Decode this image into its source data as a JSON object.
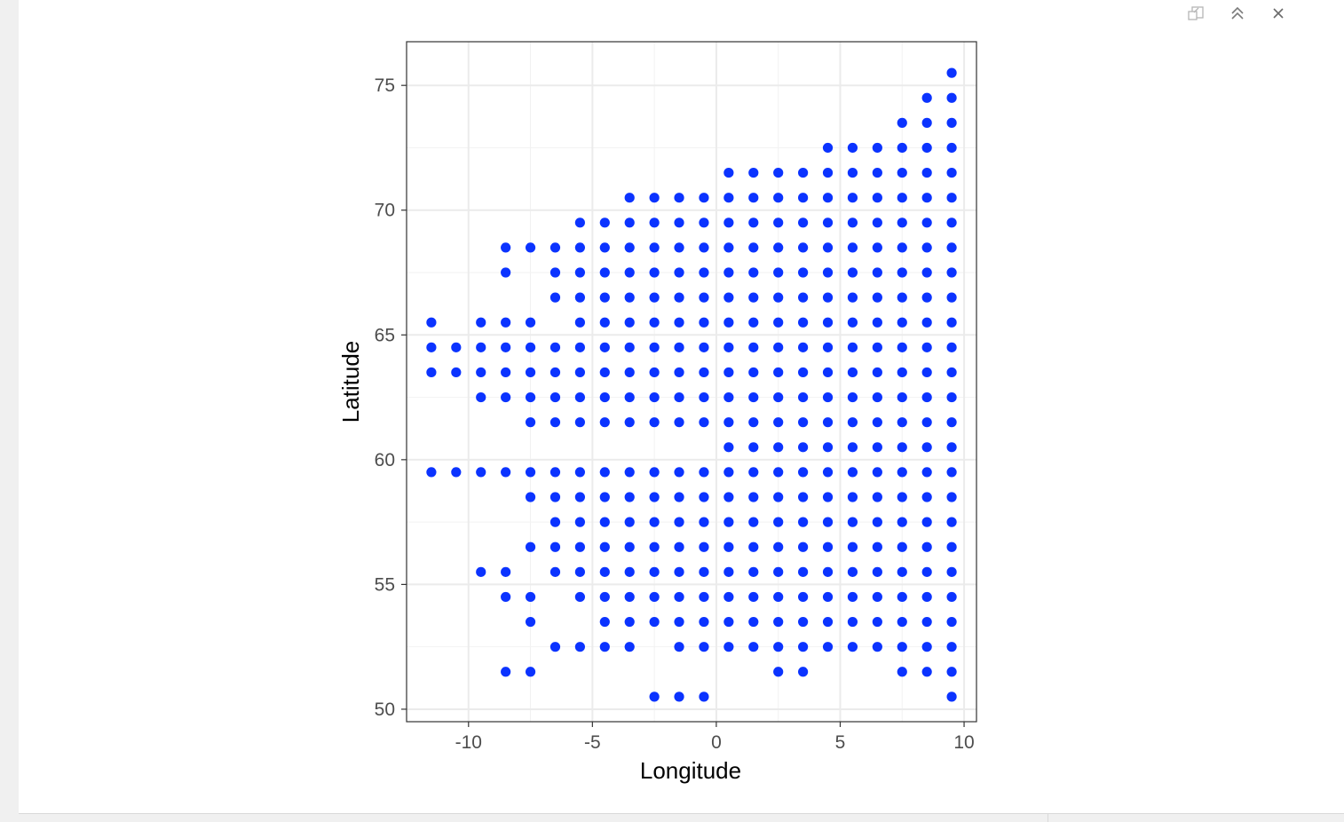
{
  "toolbar": {
    "icons": [
      "popout-icon",
      "collapse-icon",
      "close-icon"
    ]
  },
  "chart_data": {
    "type": "scatter",
    "title": "",
    "xlabel": "Longitude",
    "ylabel": "Latitude",
    "xlim": [
      -12.5,
      10.5
    ],
    "ylim": [
      49.5,
      76.75
    ],
    "x_ticks": [
      "-10",
      "-5",
      "0",
      "5",
      "10"
    ],
    "x_tick_values": [
      -10,
      -5,
      0,
      5,
      10
    ],
    "y_ticks": [
      "50",
      "55",
      "60",
      "65",
      "70",
      "75"
    ],
    "y_tick_values": [
      50,
      55,
      60,
      65,
      70,
      75
    ],
    "grid": true,
    "point_color": "#0b33ff",
    "rows": [
      {
        "lat": 75.5,
        "lons": [
          9.5
        ]
      },
      {
        "lat": 74.5,
        "lons": [
          8.5,
          9.5
        ]
      },
      {
        "lat": 73.5,
        "lons": [
          7.5,
          8.5,
          9.5
        ]
      },
      {
        "lat": 72.5,
        "lons": [
          4.5,
          5.5,
          6.5,
          7.5,
          8.5,
          9.5
        ]
      },
      {
        "lat": 71.5,
        "lons": [
          0.5,
          1.5,
          2.5,
          3.5,
          4.5,
          5.5,
          6.5,
          7.5,
          8.5,
          9.5
        ]
      },
      {
        "lat": 70.5,
        "lons": [
          -3.5,
          -2.5,
          -1.5,
          -0.5,
          0.5,
          1.5,
          2.5,
          3.5,
          4.5,
          5.5,
          6.5,
          7.5,
          8.5,
          9.5
        ]
      },
      {
        "lat": 69.5,
        "lons": [
          -5.5,
          -4.5,
          -3.5,
          -2.5,
          -1.5,
          -0.5,
          0.5,
          1.5,
          2.5,
          3.5,
          4.5,
          5.5,
          6.5,
          7.5,
          8.5,
          9.5
        ]
      },
      {
        "lat": 68.5,
        "lons": [
          -8.5,
          -7.5,
          -6.5,
          -5.5,
          -4.5,
          -3.5,
          -2.5,
          -1.5,
          -0.5,
          0.5,
          1.5,
          2.5,
          3.5,
          4.5,
          5.5,
          6.5,
          7.5,
          8.5,
          9.5
        ]
      },
      {
        "lat": 67.5,
        "lons": [
          -8.5,
          -6.5,
          -5.5,
          -4.5,
          -3.5,
          -2.5,
          -1.5,
          -0.5,
          0.5,
          1.5,
          2.5,
          3.5,
          4.5,
          5.5,
          6.5,
          7.5,
          8.5,
          9.5
        ]
      },
      {
        "lat": 66.5,
        "lons": [
          -6.5,
          -5.5,
          -4.5,
          -3.5,
          -2.5,
          -1.5,
          -0.5,
          0.5,
          1.5,
          2.5,
          3.5,
          4.5,
          5.5,
          6.5,
          7.5,
          8.5,
          9.5
        ]
      },
      {
        "lat": 65.5,
        "lons": [
          -11.5,
          -9.5,
          -8.5,
          -7.5,
          -5.5,
          -4.5,
          -3.5,
          -2.5,
          -1.5,
          -0.5,
          0.5,
          1.5,
          2.5,
          3.5,
          4.5,
          5.5,
          6.5,
          7.5,
          8.5,
          9.5
        ]
      },
      {
        "lat": 64.5,
        "lons": [
          -11.5,
          -10.5,
          -9.5,
          -8.5,
          -7.5,
          -6.5,
          -5.5,
          -4.5,
          -3.5,
          -2.5,
          -1.5,
          -0.5,
          0.5,
          1.5,
          2.5,
          3.5,
          4.5,
          5.5,
          6.5,
          7.5,
          8.5,
          9.5
        ]
      },
      {
        "lat": 63.5,
        "lons": [
          -11.5,
          -10.5,
          -9.5,
          -8.5,
          -7.5,
          -6.5,
          -5.5,
          -4.5,
          -3.5,
          -2.5,
          -1.5,
          -0.5,
          0.5,
          1.5,
          2.5,
          3.5,
          4.5,
          5.5,
          6.5,
          7.5,
          8.5,
          9.5
        ]
      },
      {
        "lat": 62.5,
        "lons": [
          -9.5,
          -8.5,
          -7.5,
          -6.5,
          -5.5,
          -4.5,
          -3.5,
          -2.5,
          -1.5,
          -0.5,
          0.5,
          1.5,
          2.5,
          3.5,
          4.5,
          5.5,
          6.5,
          7.5,
          8.5,
          9.5
        ]
      },
      {
        "lat": 61.5,
        "lons": [
          -7.5,
          -6.5,
          -5.5,
          -4.5,
          -3.5,
          -2.5,
          -1.5,
          -0.5,
          0.5,
          1.5,
          2.5,
          3.5,
          4.5,
          5.5,
          6.5,
          7.5,
          8.5,
          9.5
        ]
      },
      {
        "lat": 60.5,
        "lons": [
          0.5,
          1.5,
          2.5,
          3.5,
          4.5,
          5.5,
          6.5,
          7.5,
          8.5,
          9.5
        ]
      },
      {
        "lat": 59.5,
        "lons": [
          -11.5,
          -10.5,
          -9.5,
          -8.5,
          -7.5,
          -6.5,
          -5.5,
          -4.5,
          -3.5,
          -2.5,
          -1.5,
          -0.5,
          0.5,
          1.5,
          2.5,
          3.5,
          4.5,
          5.5,
          6.5,
          7.5,
          8.5,
          9.5
        ]
      },
      {
        "lat": 58.5,
        "lons": [
          -7.5,
          -6.5,
          -5.5,
          -4.5,
          -3.5,
          -2.5,
          -1.5,
          -0.5,
          0.5,
          1.5,
          2.5,
          3.5,
          4.5,
          5.5,
          6.5,
          7.5,
          8.5,
          9.5
        ]
      },
      {
        "lat": 57.5,
        "lons": [
          -6.5,
          -5.5,
          -4.5,
          -3.5,
          -2.5,
          -1.5,
          -0.5,
          0.5,
          1.5,
          2.5,
          3.5,
          4.5,
          5.5,
          6.5,
          7.5,
          8.5,
          9.5
        ]
      },
      {
        "lat": 56.5,
        "lons": [
          -7.5,
          -6.5,
          -5.5,
          -4.5,
          -3.5,
          -2.5,
          -1.5,
          -0.5,
          0.5,
          1.5,
          2.5,
          3.5,
          4.5,
          5.5,
          6.5,
          7.5,
          8.5,
          9.5
        ]
      },
      {
        "lat": 55.5,
        "lons": [
          -9.5,
          -8.5,
          -6.5,
          -5.5,
          -4.5,
          -3.5,
          -2.5,
          -1.5,
          -0.5,
          0.5,
          1.5,
          2.5,
          3.5,
          4.5,
          5.5,
          6.5,
          7.5,
          8.5,
          9.5
        ]
      },
      {
        "lat": 54.5,
        "lons": [
          -8.5,
          -7.5,
          -5.5,
          -4.5,
          -3.5,
          -2.5,
          -1.5,
          -0.5,
          0.5,
          1.5,
          2.5,
          3.5,
          4.5,
          5.5,
          6.5,
          7.5,
          8.5,
          9.5
        ]
      },
      {
        "lat": 53.5,
        "lons": [
          -7.5,
          -4.5,
          -3.5,
          -2.5,
          -1.5,
          -0.5,
          0.5,
          1.5,
          2.5,
          3.5,
          4.5,
          5.5,
          6.5,
          7.5,
          8.5,
          9.5
        ]
      },
      {
        "lat": 52.5,
        "lons": [
          -6.5,
          -5.5,
          -4.5,
          -3.5,
          -1.5,
          -0.5,
          0.5,
          1.5,
          2.5,
          3.5,
          4.5,
          5.5,
          6.5,
          7.5,
          8.5,
          9.5
        ]
      },
      {
        "lat": 51.5,
        "lons": [
          -8.5,
          -7.5,
          2.5,
          3.5,
          7.5,
          8.5,
          9.5
        ]
      },
      {
        "lat": 50.5,
        "lons": [
          -2.5,
          -1.5,
          -0.5,
          9.5
        ]
      }
    ]
  }
}
